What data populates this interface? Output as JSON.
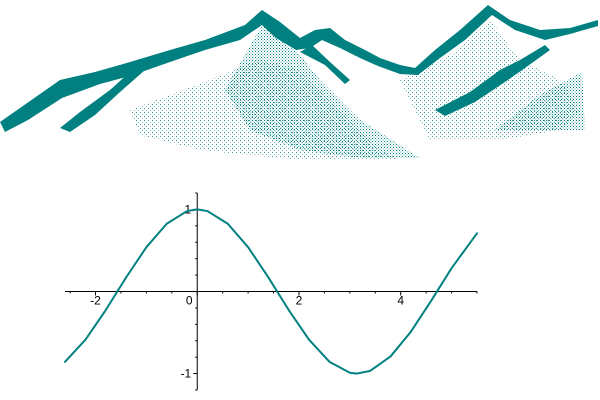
{
  "colors": {
    "accent": "#008080",
    "axis": "#000000",
    "background": "#ffffff"
  },
  "decoration": {
    "icon": "mountain-range-icon"
  },
  "chart_data": {
    "type": "line",
    "function": "cos(x)",
    "xlim": [
      -2.6,
      5.5
    ],
    "ylim": [
      -1.2,
      1.2
    ],
    "x_ticks": [
      -2,
      0,
      2,
      4
    ],
    "y_ticks": [
      1,
      -1
    ],
    "x_tick_labels": [
      "-2",
      "0",
      "2",
      "4"
    ],
    "y_tick_labels": [
      "1",
      "-1"
    ],
    "series": [
      {
        "x": [
          -2.6,
          -2.2,
          -1.8,
          -1.4,
          -1.0,
          -0.6,
          -0.2,
          0.0,
          0.2,
          0.6,
          1.0,
          1.4,
          1.8,
          2.2,
          2.6,
          3.0,
          3.14,
          3.4,
          3.8,
          4.2,
          4.6,
          5.0,
          5.5
        ],
        "y": [
          -0.857,
          -0.589,
          -0.227,
          0.17,
          0.54,
          0.825,
          0.98,
          1.0,
          0.98,
          0.825,
          0.54,
          0.17,
          -0.227,
          -0.589,
          -0.857,
          -0.99,
          -1.0,
          -0.967,
          -0.791,
          -0.49,
          -0.112,
          0.284,
          0.709
        ]
      }
    ]
  }
}
